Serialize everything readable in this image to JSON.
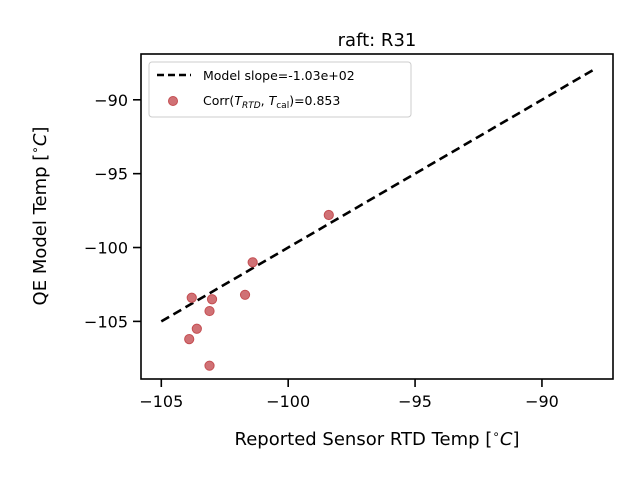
{
  "chart_data": {
    "type": "scatter",
    "title": "raft: R31",
    "xlabel": "Reported Sensor RTD Temp [$^{\\circ}C$]",
    "xlabel_text": "Reported Sensor RTD Temp [",
    "xlabel_unit": "C",
    "ylabel_text": "QE Model Temp [",
    "ylabel_unit": "C",
    "xlim": [
      -105.8,
      -87.2
    ],
    "ylim": [
      -108.9,
      -86.9
    ],
    "xticks": [
      -105,
      -100,
      -95,
      -90
    ],
    "yticks": [
      -90,
      -95,
      -100,
      -105
    ],
    "xtick_labels": [
      "−105",
      "−100",
      "−95",
      "−90"
    ],
    "ytick_labels": [
      "−90",
      "−95",
      "−100",
      "−105"
    ],
    "grid": false,
    "legend_position": "upper-left",
    "series": [
      {
        "name": "Model slope=-1.03e+02",
        "kind": "line",
        "style": "dashed",
        "color": "#000000",
        "x": [
          -105.0,
          -88.0
        ],
        "y": [
          -105.0,
          -88.0
        ]
      },
      {
        "name": "Corr(T_RTD, T_cal)=0.853",
        "kind": "scatter",
        "color": "#c44e52",
        "x": [
          -98.4,
          -101.4,
          -101.7,
          -103.0,
          -103.1,
          -103.8,
          -103.6,
          -103.9,
          -103.1
        ],
        "y": [
          -97.8,
          -101.0,
          -103.2,
          -103.5,
          -104.3,
          -103.4,
          -105.5,
          -106.2,
          -108.0
        ]
      }
    ],
    "legend": {
      "line_label": "Model slope=-1.03e+02",
      "scatter_label_prefix": "Corr(",
      "scatter_T1": "T",
      "scatter_T1_sub": "RTD",
      "scatter_sep": ", ",
      "scatter_T2": "T",
      "scatter_T2_sub": "cal",
      "scatter_label_suffix": ")=0.853"
    }
  }
}
